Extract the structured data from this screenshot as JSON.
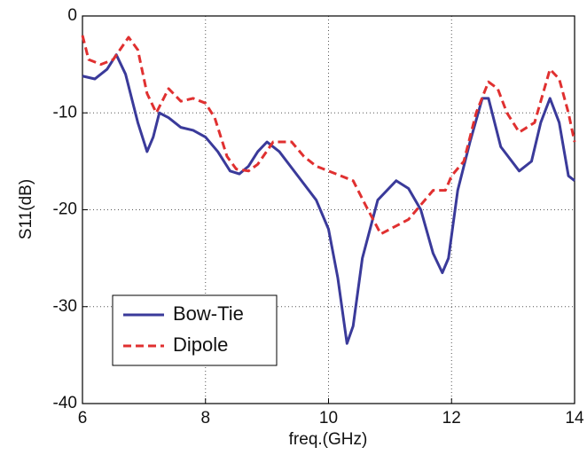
{
  "chart_data": {
    "type": "line",
    "xlabel": "freq.(GHz)",
    "ylabel": "S11(dB)",
    "xlim": [
      6,
      14
    ],
    "xticks": [
      6,
      8,
      10,
      12,
      14
    ],
    "ylim": [
      -40,
      0
    ],
    "yticks": [
      -40,
      -30,
      -20,
      -10,
      0
    ],
    "grid": true,
    "legend": "lower left",
    "series": [
      {
        "name": "Bow-Tie",
        "color": "#3a3a9a",
        "dash": "solid",
        "x": [
          6,
          6.2,
          6.4,
          6.55,
          6.7,
          6.9,
          7.05,
          7.15,
          7.25,
          7.4,
          7.6,
          7.8,
          8.0,
          8.2,
          8.4,
          8.55,
          8.7,
          8.85,
          9.0,
          9.2,
          9.5,
          9.8,
          10.0,
          10.15,
          10.3,
          10.4,
          10.55,
          10.8,
          11.1,
          11.3,
          11.5,
          11.7,
          11.85,
          11.95,
          12.1,
          12.3,
          12.5,
          12.6,
          12.8,
          13.1,
          13.3,
          13.45,
          13.6,
          13.75,
          13.9,
          14.0
        ],
        "values": [
          -6.2,
          -6.5,
          -5.5,
          -4.0,
          -6,
          -11,
          -14,
          -12.5,
          -10,
          -10.5,
          -11.5,
          -11.8,
          -12.5,
          -14,
          -16,
          -16.3,
          -15.5,
          -14,
          -13,
          -14,
          -16.5,
          -19,
          -22,
          -27,
          -33.8,
          -32,
          -25,
          -19,
          -17,
          -17.8,
          -20,
          -24.5,
          -26.5,
          -25,
          -18,
          -13,
          -8.5,
          -8.5,
          -13.5,
          -16,
          -15,
          -11,
          -8.5,
          -11,
          -16.5,
          -17
        ]
      },
      {
        "name": "Dipole",
        "color": "#e03030",
        "dash": "dashed",
        "x": [
          6,
          6.1,
          6.3,
          6.5,
          6.75,
          6.9,
          7.05,
          7.2,
          7.4,
          7.6,
          7.8,
          8.0,
          8.15,
          8.35,
          8.5,
          8.7,
          8.85,
          9.1,
          9.4,
          9.6,
          9.8,
          10.0,
          10.2,
          10.4,
          10.6,
          10.85,
          11.0,
          11.3,
          11.5,
          11.7,
          11.9,
          12.0,
          12.2,
          12.4,
          12.6,
          12.75,
          12.9,
          13.1,
          13.35,
          13.6,
          13.75,
          13.9,
          14.0
        ],
        "values": [
          -2,
          -4.5,
          -5,
          -4.5,
          -2.2,
          -3.5,
          -8,
          -10,
          -7.5,
          -8.8,
          -8.5,
          -9,
          -10.5,
          -14.5,
          -15.8,
          -16,
          -15.3,
          -13,
          -13,
          -14.5,
          -15.5,
          -16,
          -16.5,
          -17,
          -19.5,
          -22.5,
          -22,
          -21,
          -19.5,
          -18,
          -18,
          -16.5,
          -15,
          -10,
          -6.8,
          -7.5,
          -10,
          -12,
          -11,
          -5.5,
          -6.5,
          -10,
          -13
        ]
      }
    ]
  }
}
